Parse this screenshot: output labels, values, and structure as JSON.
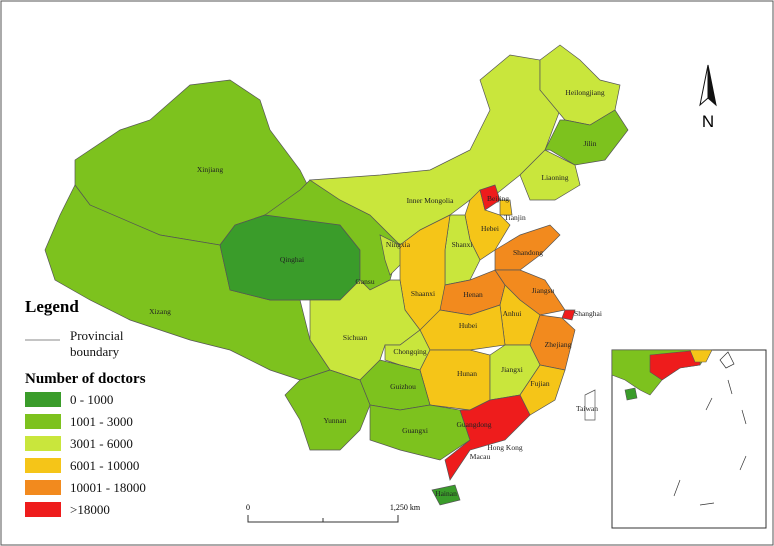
{
  "legend": {
    "title": "Legend",
    "boundary": [
      "Provincial",
      "boundary"
    ],
    "subtitle": "Number of doctors",
    "items": [
      {
        "label": "0 - 1000",
        "color": "#3a9c2a"
      },
      {
        "label": "1001 - 3000",
        "color": "#7dc21e"
      },
      {
        "label": "3001 - 6000",
        "color": "#c9e63c"
      },
      {
        "label": "6001 - 10000",
        "color": "#f5c518"
      },
      {
        "label": "10001 - 18000",
        "color": "#f28a1e"
      },
      {
        "label": ">18000",
        "color": "#ee1c1c"
      }
    ]
  },
  "north": "N",
  "scale": [
    "0",
    "1,250 km"
  ],
  "places": [
    "Xinjiang",
    "Xizang",
    "Qinghai",
    "Gansu",
    "Inner Mongolia",
    "Heilongjiang",
    "Jilin",
    "Liaoning",
    "Beijing",
    "Tianjin",
    "Hebei",
    "Shanxi",
    "Shandong",
    "Ningxia",
    "Shaanxi",
    "Henan",
    "Jiangsu",
    "Shanghai",
    "Anhui",
    "Hubei",
    "Sichuan",
    "Chongqing",
    "Zhejiang",
    "Hunan",
    "Jiangxi",
    "Fujian",
    "Guizhou",
    "Yunnan",
    "Guangxi",
    "Guangdong",
    "Taiwan",
    "Hong Kong",
    "Macau",
    "Hainan"
  ]
}
